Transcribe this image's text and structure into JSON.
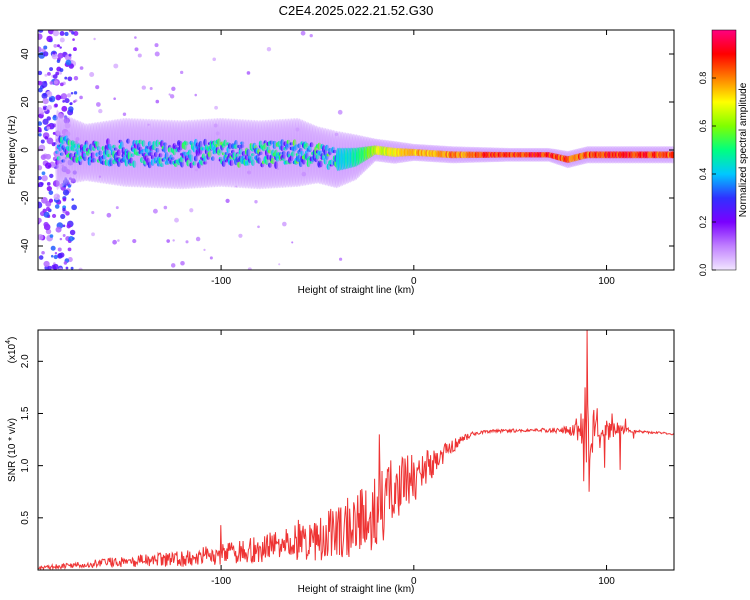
{
  "title": "C2E4.2025.022.21.52.G30",
  "chart_data": [
    {
      "type": "heatmap",
      "xlabel": "Height of straight line (km)",
      "ylabel": "Frequency (Hz)",
      "xlim": [
        -195,
        135
      ],
      "ylim": [
        -50,
        50
      ],
      "x_ticks": [
        -100,
        0,
        100
      ],
      "x_tick_labels": [
        "-100",
        "0",
        "100"
      ],
      "y_ticks": [
        -40,
        -20,
        0,
        20,
        40
      ],
      "y_tick_labels": [
        "-40",
        "-20",
        "0",
        "20",
        "40"
      ],
      "grid": false,
      "colorbar": {
        "label": "Normalized spectral amplitude",
        "ticks": [
          0.0,
          0.2,
          0.4,
          0.6,
          0.8
        ],
        "tick_labels": [
          "0.0",
          "0.2",
          "0.4",
          "0.6",
          "0.8"
        ],
        "range": [
          0,
          1
        ],
        "colormap": [
          "#f2e6ff",
          "#c080ff",
          "#7a00ff",
          "#3030ff",
          "#00c8ff",
          "#00ff80",
          "#80ff00",
          "#ffff00",
          "#ff8000",
          "#ff0000",
          "#ff0080"
        ]
      },
      "band_profile": {
        "x": [
          -190,
          -180,
          -170,
          -150,
          -120,
          -100,
          -80,
          -60,
          -50,
          -40,
          -30,
          -20,
          -10,
          0,
          20,
          50,
          70,
          80,
          90,
          100,
          110,
          135
        ],
        "center_hz": [
          0,
          0,
          -1,
          -1,
          -2,
          -1,
          -2,
          -1,
          -2,
          -4,
          -3,
          0,
          -1,
          -1,
          -2,
          -2,
          -2,
          -4,
          -2,
          -2,
          -2,
          -2
        ],
        "halfwidth_hz": [
          8,
          6,
          5,
          6,
          6,
          6,
          6,
          6,
          5,
          5,
          4,
          2,
          2,
          1.5,
          1.5,
          1.2,
          1.2,
          1.5,
          1.5,
          1.5,
          1.5,
          1.5
        ],
        "peak_amplitude": [
          0.3,
          0.45,
          0.4,
          0.4,
          0.42,
          0.45,
          0.45,
          0.45,
          0.45,
          0.45,
          0.5,
          0.7,
          0.75,
          0.8,
          0.85,
          0.95,
          0.95,
          0.9,
          0.9,
          0.95,
          0.95,
          0.9
        ]
      }
    },
    {
      "type": "line",
      "xlabel": "Height of straight line (km)",
      "ylabel": "SNR (10 * v/v)",
      "y_scale_label": "(x10",
      "y_scale_exponent": "4",
      "xlim": [
        -195,
        135
      ],
      "ylim": [
        0,
        23000
      ],
      "x_ticks": [
        -100,
        0,
        100
      ],
      "x_tick_labels": [
        "-100",
        "0",
        "100"
      ],
      "y_ticks": [
        5000,
        10000,
        15000,
        20000
      ],
      "y_tick_labels": [
        "0.5",
        "1.0",
        "1.5",
        "2.0"
      ],
      "grid": false,
      "series": [
        {
          "color": "#ee3333",
          "x": [
            -195,
            -180,
            -160,
            -140,
            -120,
            -110,
            -100,
            -90,
            -80,
            -70,
            -60,
            -50,
            -40,
            -30,
            -20,
            -15,
            -10,
            -5,
            0,
            5,
            10,
            15,
            20,
            25,
            30,
            40,
            50,
            60,
            70,
            80,
            85,
            88,
            90,
            92,
            95,
            100,
            105,
            110,
            115,
            120,
            130,
            135
          ],
          "y": [
            200,
            400,
            700,
            900,
            1100,
            1300,
            1500,
            1800,
            2000,
            2400,
            2700,
            3100,
            3600,
            4400,
            5500,
            6500,
            7400,
            8200,
            9000,
            9700,
            10300,
            11000,
            11800,
            12500,
            13000,
            13300,
            13350,
            13400,
            13400,
            13450,
            13500,
            13300,
            13000,
            13200,
            13300,
            13400,
            13600,
            13400,
            13300,
            13200,
            13100,
            13000
          ],
          "noise": [
            150,
            250,
            450,
            600,
            800,
            900,
            1000,
            1200,
            1300,
            1500,
            1800,
            2200,
            2600,
            3200,
            3500,
            3600,
            3400,
            3000,
            2600,
            2000,
            1500,
            1000,
            700,
            400,
            250,
            150,
            150,
            150,
            200,
            400,
            1200,
            2500,
            3500,
            2500,
            2000,
            1200,
            700,
            300,
            150,
            120,
            100,
            100
          ]
        }
      ],
      "spikes": [
        {
          "x": -100,
          "y": 4300
        },
        {
          "x": -60,
          "y": 4800
        },
        {
          "x": -18,
          "y": 13000
        },
        {
          "x": -12,
          "y": 10500
        },
        {
          "x": 90,
          "y": 23000
        },
        {
          "x": 89,
          "y": 17500
        },
        {
          "x": 88,
          "y": 8500
        },
        {
          "x": 91,
          "y": 7500
        },
        {
          "x": 95,
          "y": 15500
        },
        {
          "x": 99,
          "y": 9800
        },
        {
          "x": 103,
          "y": 15000
        },
        {
          "x": 107,
          "y": 9600
        },
        {
          "x": 110,
          "y": 14500
        },
        {
          "x": 114,
          "y": 12600
        }
      ]
    }
  ]
}
